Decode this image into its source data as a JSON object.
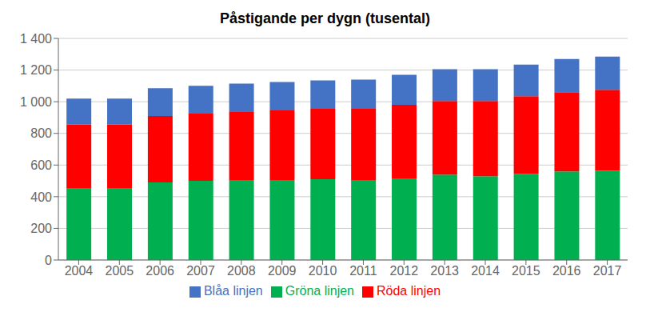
{
  "chart_data": {
    "type": "bar",
    "stacked": true,
    "title": "Påstigande per dygn (tusental)",
    "categories": [
      "2004",
      "2005",
      "2006",
      "2007",
      "2008",
      "2009",
      "2010",
      "2011",
      "2012",
      "2013",
      "2014",
      "2015",
      "2016",
      "2017"
    ],
    "series": [
      {
        "name": "Gröna linjen",
        "color": "#00B050",
        "values": [
          455,
          455,
          490,
          500,
          505,
          505,
          510,
          505,
          515,
          540,
          530,
          545,
          560,
          565
        ]
      },
      {
        "name": "Röda linjen",
        "color": "#FF0000",
        "values": [
          400,
          400,
          420,
          425,
          430,
          440,
          445,
          450,
          465,
          465,
          475,
          490,
          500,
          510
        ]
      },
      {
        "name": "Blåa linjen",
        "color": "#4472C4",
        "values": [
          165,
          165,
          175,
          175,
          180,
          180,
          180,
          185,
          190,
          200,
          200,
          200,
          210,
          210
        ]
      }
    ],
    "ylim": [
      0,
      1400
    ],
    "yticks": [
      0,
      200,
      400,
      600,
      800,
      {
        "value": 1000,
        "label": "1 000"
      },
      {
        "value": 1200,
        "label": "1 200"
      },
      {
        "value": 1400,
        "label": "1 400"
      }
    ],
    "grid": true,
    "legend": "bottom"
  }
}
